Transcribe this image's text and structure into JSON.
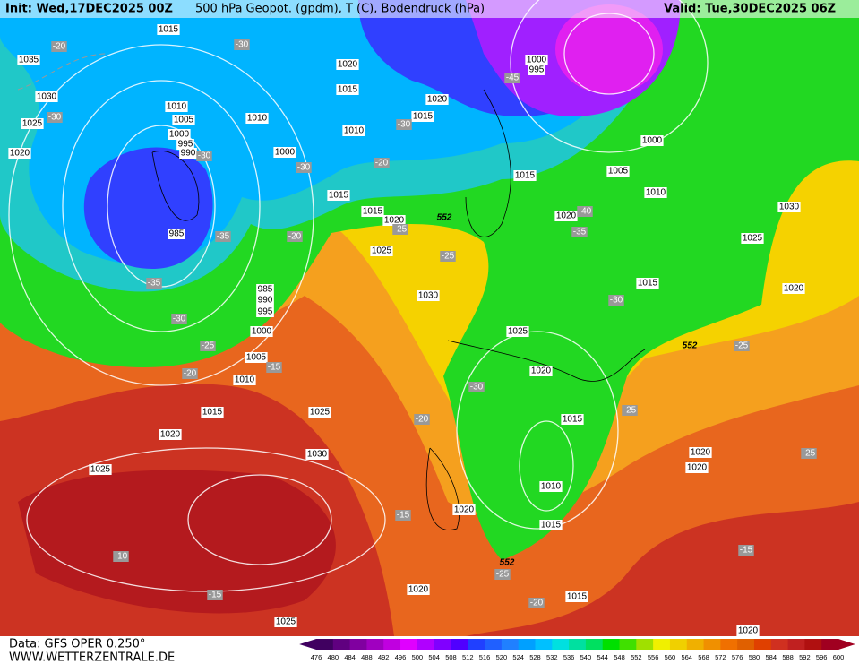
{
  "header": {
    "init": "Init: Wed,17DEC2025 00Z",
    "title": "500 hPa Geopot. (gpdm), T (C), Bodendruck (hPa)",
    "valid": "Valid: Tue,30DEC2025 06Z"
  },
  "footer": {
    "data": "Data: GFS OPER 0.250°",
    "site": "WWW.WETTERZENTRALE.DE"
  },
  "colorbar": {
    "values": [
      476,
      480,
      484,
      488,
      492,
      496,
      500,
      504,
      508,
      512,
      516,
      520,
      524,
      528,
      532,
      536,
      540,
      544,
      548,
      552,
      556,
      560,
      564,
      568,
      572,
      576,
      580,
      584,
      588,
      592,
      596,
      600
    ],
    "colors": [
      "#400060",
      "#600080",
      "#8000a0",
      "#a000c0",
      "#c000e0",
      "#e000ff",
      "#b000ff",
      "#8000ff",
      "#5000ff",
      "#2040ff",
      "#2060ff",
      "#2080ff",
      "#00a0ff",
      "#00c0ff",
      "#00e0e0",
      "#00e0a0",
      "#00e060",
      "#00e000",
      "#40e000",
      "#a0e000",
      "#f0f000",
      "#f0d000",
      "#f0b000",
      "#f09000",
      "#f07000",
      "#e06000",
      "#e04000",
      "#d03020",
      "#c02020",
      "#b01010",
      "#a00020"
    ]
  },
  "isobar_labels": [
    "1015",
    "1035",
    "1030",
    "1025",
    "1020",
    "1010",
    "1005",
    "1000",
    "995",
    "990",
    "985",
    "985",
    "990",
    "995",
    "1000",
    "1005",
    "1010",
    "1015",
    "1020",
    "1025",
    "1025",
    "1030",
    "1025",
    "1020",
    "1020",
    "1015",
    "1010",
    "1015",
    "1020",
    "1025",
    "1030",
    "1025",
    "1020",
    "1015",
    "1015",
    "1000",
    "1010",
    "1010",
    "1015",
    "1020",
    "1020",
    "1015",
    "1015",
    "1020",
    "1015",
    "1025",
    "1030",
    "1020",
    "1010",
    "1005",
    "1000",
    "1000",
    "995",
    "1020",
    "1020",
    "1020",
    "1015"
  ],
  "temperature_labels": [
    "-20",
    "-30",
    "-30",
    "-30",
    "-35",
    "-20",
    "-35",
    "-30",
    "-25",
    "-15",
    "-20",
    "-25",
    "-25",
    "-30",
    "-20",
    "-30",
    "-40",
    "-35",
    "-30",
    "-30",
    "-20",
    "-15",
    "-10",
    "-15",
    "-20",
    "-25",
    "-15",
    "-25",
    "-25",
    "-25",
    "-45"
  ],
  "geopotential_labels": [
    "552",
    "552",
    "552"
  ]
}
